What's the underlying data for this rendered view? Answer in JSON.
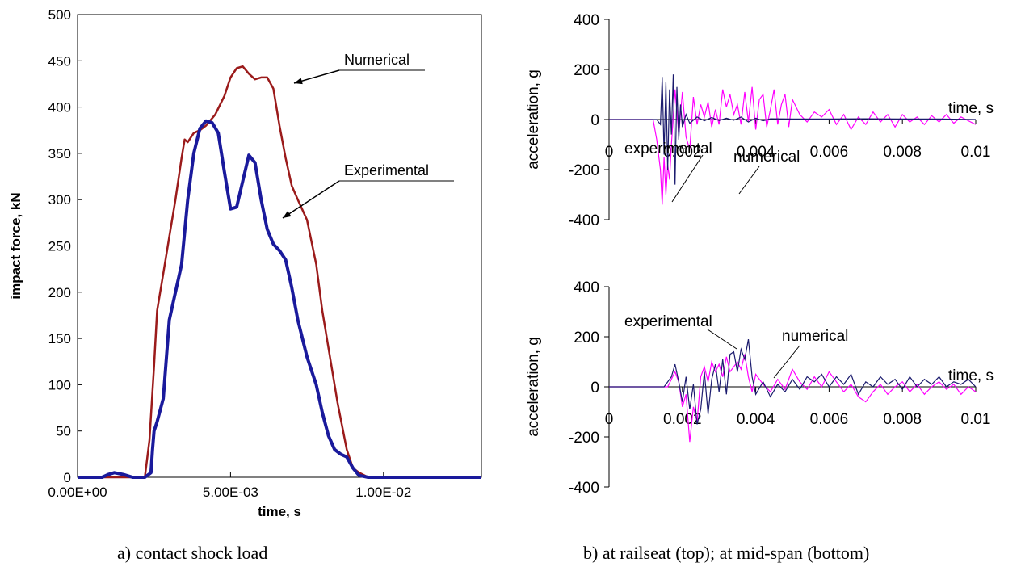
{
  "captions": {
    "a": "a) contact shock load",
    "b": "b) at railseat (top); at mid-span (bottom)"
  },
  "colors": {
    "numerical_a": "#9b1b1b",
    "experimental_a": "#1a1a9c",
    "experimental_b": "#1b1b6e",
    "numerical_b": "#ff00ff",
    "axis": "#000000",
    "zero_line": "#808080"
  },
  "chart_data": [
    {
      "id": "impact-force",
      "type": "line",
      "title": "",
      "xlabel": "time, s",
      "ylabel": "impact force, kN",
      "xlim": [
        0,
        0.0132
      ],
      "ylim": [
        0,
        500
      ],
      "xticks": [
        0,
        0.005,
        0.01
      ],
      "xtick_labels": [
        "0.00E+00",
        "5.00E-03",
        "1.00E-02"
      ],
      "yticks": [
        0,
        50,
        100,
        150,
        200,
        250,
        300,
        350,
        400,
        450,
        500
      ],
      "grid": false,
      "legend": "none",
      "series": [
        {
          "name": "Numerical",
          "x": [
            0,
            0.0022,
            0.00235,
            0.0025,
            0.0026,
            0.0028,
            0.003,
            0.0032,
            0.0034,
            0.0035,
            0.0036,
            0.0038,
            0.004,
            0.0042,
            0.0045,
            0.0048,
            0.005,
            0.0052,
            0.0054,
            0.0056,
            0.0058,
            0.006,
            0.0062,
            0.0064,
            0.0066,
            0.0068,
            0.007,
            0.0072,
            0.0075,
            0.0078,
            0.008,
            0.0082,
            0.0085,
            0.0088,
            0.009,
            0.0092,
            0.0095,
            0.0132
          ],
          "y": [
            0,
            0,
            40,
            120,
            180,
            220,
            260,
            300,
            345,
            365,
            362,
            372,
            375,
            380,
            392,
            412,
            432,
            442,
            444,
            436,
            430,
            432,
            432,
            420,
            380,
            345,
            315,
            300,
            278,
            230,
            180,
            140,
            80,
            30,
            10,
            5,
            0,
            0
          ]
        },
        {
          "name": "Experimental",
          "x": [
            0,
            0.0008,
            0.001,
            0.0012,
            0.0015,
            0.0018,
            0.0022,
            0.0024,
            0.00245,
            0.0025,
            0.0026,
            0.0028,
            0.003,
            0.0032,
            0.0034,
            0.0036,
            0.0038,
            0.004,
            0.0042,
            0.0044,
            0.0046,
            0.0048,
            0.005,
            0.0052,
            0.0054,
            0.0056,
            0.0058,
            0.006,
            0.0062,
            0.0064,
            0.0066,
            0.0068,
            0.007,
            0.0072,
            0.0075,
            0.0078,
            0.008,
            0.0082,
            0.0084,
            0.0086,
            0.0088,
            0.009,
            0.0092,
            0.0095,
            0.0132
          ],
          "y": [
            0,
            0,
            3,
            5,
            3,
            0,
            0,
            5,
            30,
            50,
            60,
            85,
            170,
            200,
            230,
            300,
            350,
            377,
            385,
            383,
            372,
            330,
            290,
            292,
            320,
            348,
            340,
            300,
            268,
            252,
            245,
            235,
            205,
            170,
            130,
            100,
            70,
            45,
            30,
            25,
            22,
            10,
            2,
            0,
            0
          ]
        }
      ],
      "annotations": [
        {
          "text": "Numerical",
          "series": "Numerical"
        },
        {
          "text": "Experimental",
          "series": "Experimental"
        }
      ]
    },
    {
      "id": "acceleration-railseat",
      "type": "line",
      "title": "",
      "xlabel": "time, s",
      "ylabel": "acceleration, g",
      "xlim": [
        0,
        0.01
      ],
      "ylim": [
        -400,
        400
      ],
      "xticks": [
        0,
        0.002,
        0.004,
        0.006,
        0.008,
        0.01
      ],
      "xtick_labels": [
        "0",
        "0.002",
        "0.004",
        "0.006",
        "0.008",
        "0.01"
      ],
      "yticks": [
        -400,
        -200,
        0,
        200,
        400
      ],
      "grid": false,
      "legend": "none",
      "series": [
        {
          "name": "experimental",
          "x": [
            0,
            0.0013,
            0.0014,
            0.00145,
            0.0015,
            0.00155,
            0.0016,
            0.00165,
            0.0017,
            0.00175,
            0.0018,
            0.00185,
            0.0019,
            0.00195,
            0.002,
            0.0021,
            0.0022,
            0.0024,
            0.0026,
            0.0028,
            0.003,
            0.0032,
            0.0034,
            0.0036,
            0.0038,
            0.004,
            0.0042,
            0.0044,
            0.005,
            0.006,
            0.007,
            0.008,
            0.009,
            0.01
          ],
          "y": [
            0,
            0,
            -20,
            170,
            -140,
            150,
            -200,
            120,
            -60,
            180,
            -260,
            130,
            -80,
            60,
            -30,
            20,
            -15,
            10,
            -5,
            8,
            -4,
            5,
            -3,
            10,
            -10,
            5,
            -5,
            3,
            2,
            2,
            3,
            2,
            2,
            0
          ]
        },
        {
          "name": "numerical",
          "x": [
            0,
            0.0012,
            0.0013,
            0.0014,
            0.00145,
            0.0015,
            0.00155,
            0.0016,
            0.00165,
            0.0017,
            0.0018,
            0.0019,
            0.002,
            0.0021,
            0.0022,
            0.0023,
            0.0024,
            0.0025,
            0.0026,
            0.0027,
            0.0028,
            0.0029,
            0.003,
            0.0031,
            0.0032,
            0.0033,
            0.0034,
            0.0035,
            0.0036,
            0.0037,
            0.0038,
            0.0039,
            0.004,
            0.0041,
            0.0042,
            0.0043,
            0.0044,
            0.0045,
            0.0046,
            0.0047,
            0.0048,
            0.0049,
            0.005,
            0.0052,
            0.0054,
            0.0056,
            0.0058,
            0.006,
            0.0062,
            0.0064,
            0.0066,
            0.0068,
            0.007,
            0.0072,
            0.0074,
            0.0076,
            0.0078,
            0.008,
            0.0082,
            0.0084,
            0.0086,
            0.0088,
            0.009,
            0.0092,
            0.0094,
            0.0096,
            0.0098,
            0.01
          ],
          "y": [
            0,
            0,
            -80,
            -200,
            -340,
            -150,
            -300,
            -180,
            -240,
            -100,
            120,
            -60,
            110,
            -70,
            -120,
            90,
            -20,
            60,
            10,
            70,
            -30,
            40,
            -20,
            120,
            50,
            100,
            20,
            60,
            -20,
            110,
            -10,
            130,
            -40,
            80,
            100,
            -30,
            40,
            120,
            -20,
            60,
            100,
            -30,
            80,
            20,
            -10,
            30,
            10,
            40,
            -20,
            20,
            -40,
            10,
            -20,
            30,
            -10,
            20,
            -30,
            20,
            -10,
            10,
            -20,
            15,
            -10,
            20,
            -15,
            10,
            -5,
            -20
          ]
        }
      ],
      "annotations": [
        {
          "text": "experimental",
          "series": "experimental"
        },
        {
          "text": "numerical",
          "series": "numerical"
        },
        {
          "text": "time, s",
          "role": "xlabel"
        }
      ]
    },
    {
      "id": "acceleration-midspan",
      "type": "line",
      "title": "",
      "xlabel": "time, s",
      "ylabel": "acceleration, g",
      "xlim": [
        0,
        0.01
      ],
      "ylim": [
        -400,
        400
      ],
      "xticks": [
        0,
        0.002,
        0.004,
        0.006,
        0.008,
        0.01
      ],
      "xtick_labels": [
        "0",
        "0.002",
        "0.004",
        "0.006",
        "0.008",
        "0.01"
      ],
      "yticks": [
        -400,
        -200,
        0,
        200,
        400
      ],
      "grid": false,
      "legend": "none",
      "series": [
        {
          "name": "experimental",
          "x": [
            0,
            0.0015,
            0.0017,
            0.0018,
            0.0019,
            0.002,
            0.0021,
            0.0022,
            0.0023,
            0.0024,
            0.0025,
            0.0026,
            0.0027,
            0.0028,
            0.0029,
            0.003,
            0.0031,
            0.0032,
            0.0033,
            0.0034,
            0.0035,
            0.0036,
            0.0037,
            0.0038,
            0.0039,
            0.004,
            0.0042,
            0.0044,
            0.0046,
            0.0048,
            0.005,
            0.0052,
            0.0054,
            0.0056,
            0.0058,
            0.006,
            0.0062,
            0.0064,
            0.0066,
            0.0068,
            0.007,
            0.0072,
            0.0074,
            0.0076,
            0.0078,
            0.008,
            0.0082,
            0.0084,
            0.0086,
            0.0088,
            0.009,
            0.0092,
            0.0094,
            0.0096,
            0.0098,
            0.01
          ],
          "y": [
            0,
            0,
            40,
            90,
            20,
            -60,
            40,
            -90,
            10,
            -150,
            -90,
            60,
            -110,
            30,
            90,
            -20,
            110,
            -30,
            130,
            140,
            60,
            150,
            110,
            190,
            40,
            -30,
            20,
            -40,
            10,
            -20,
            30,
            -10,
            40,
            20,
            50,
            0,
            40,
            10,
            50,
            -30,
            20,
            0,
            40,
            10,
            30,
            -10,
            40,
            0,
            30,
            10,
            40,
            0,
            20,
            10,
            30,
            0
          ]
        },
        {
          "name": "numerical",
          "x": [
            0,
            0.0016,
            0.0018,
            0.0019,
            0.002,
            0.0021,
            0.0022,
            0.0023,
            0.0024,
            0.0025,
            0.0026,
            0.0027,
            0.0028,
            0.0029,
            0.003,
            0.0031,
            0.0032,
            0.0033,
            0.0034,
            0.0035,
            0.0036,
            0.0037,
            0.0038,
            0.0039,
            0.004,
            0.0042,
            0.0044,
            0.0046,
            0.0048,
            0.005,
            0.0052,
            0.0054,
            0.0056,
            0.0058,
            0.006,
            0.0062,
            0.0064,
            0.0066,
            0.0068,
            0.007,
            0.0072,
            0.0074,
            0.0076,
            0.0078,
            0.008,
            0.0082,
            0.0084,
            0.0086,
            0.0088,
            0.009,
            0.0092,
            0.0094,
            0.0096,
            0.0098,
            0.01
          ],
          "y": [
            0,
            0,
            60,
            20,
            -80,
            -30,
            -220,
            -80,
            -140,
            40,
            80,
            20,
            100,
            60,
            90,
            40,
            120,
            60,
            80,
            100,
            70,
            130,
            40,
            -20,
            50,
            10,
            -20,
            30,
            -10,
            70,
            20,
            -10,
            40,
            0,
            60,
            20,
            -20,
            10,
            -40,
            -60,
            -20,
            10,
            -30,
            0,
            20,
            -20,
            10,
            -30,
            0,
            20,
            -10,
            10,
            -30,
            0,
            -20
          ]
        }
      ],
      "annotations": [
        {
          "text": "experimental",
          "series": "experimental"
        },
        {
          "text": "numerical",
          "series": "numerical"
        },
        {
          "text": "time, s",
          "role": "xlabel"
        }
      ]
    }
  ]
}
